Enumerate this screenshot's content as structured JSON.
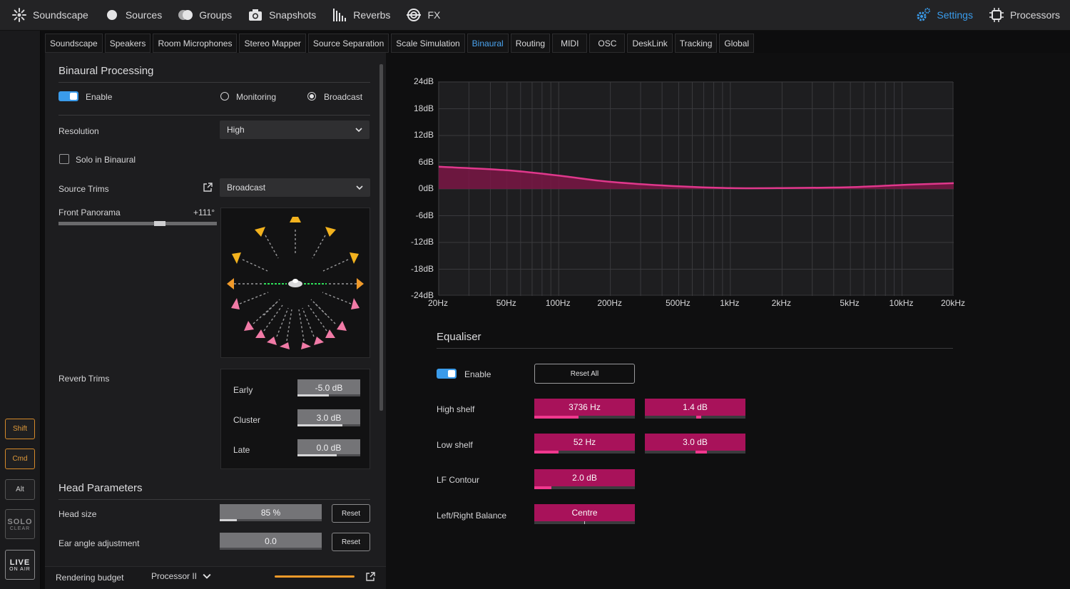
{
  "nav": {
    "items": [
      "Soundscape",
      "Sources",
      "Groups",
      "Snapshots",
      "Reverbs",
      "FX"
    ],
    "right": [
      "Settings",
      "Processors"
    ],
    "active": "Settings"
  },
  "tabs": [
    "Soundscape",
    "Speakers",
    "Room Microphones",
    "Stereo Mapper",
    "Source Separation",
    "Scale Simulation",
    "Binaural",
    "Routing",
    "MIDI",
    "OSC",
    "DeskLink",
    "Tracking",
    "Global"
  ],
  "sidebar": {
    "shift": "Shift",
    "cmd": "Cmd",
    "alt": "Alt",
    "solo": "SOLO",
    "solo_sub": "CLEAR",
    "live": "LIVE",
    "live_sub": "ON AIR"
  },
  "binaural": {
    "title": "Binaural Processing",
    "enable_label": "Enable",
    "monitoring_label": "Monitoring",
    "broadcast_label": "Broadcast",
    "resolution_label": "Resolution",
    "resolution_value": "High",
    "solo_label": "Solo in Binaural",
    "source_trims_label": "Source Trims",
    "source_trims_value": "Broadcast",
    "front_panorama_label": "Front Panorama",
    "front_panorama_value": "+111°",
    "reverb_trims_label": "Reverb Trims",
    "reverb": [
      {
        "label": "Early",
        "value": "-5.0 dB",
        "fill": 0.5
      },
      {
        "label": "Cluster",
        "value": "3.0 dB",
        "fill": 0.72
      },
      {
        "label": "Late",
        "value": "0.0 dB",
        "fill": 0.63
      }
    ]
  },
  "head": {
    "title": "Head Parameters",
    "size_label": "Head size",
    "size_value": "85 %",
    "size_fill": 0.17,
    "ear_label": "Ear angle adjustment",
    "ear_value": "0.0",
    "reset_label": "Reset"
  },
  "footer": {
    "budget_label": "Rendering budget",
    "processor": "Processor II"
  },
  "chart": {
    "y_ticks": [
      "24dB",
      "18dB",
      "12dB",
      "6dB",
      "0dB",
      "-6dB",
      "-12dB",
      "-18dB",
      "-24dB"
    ],
    "x_ticks": [
      "20Hz",
      "50Hz",
      "100Hz",
      "200Hz",
      "500Hz",
      "1kHz",
      "2kHz",
      "5kHz",
      "10kHz",
      "20kHz"
    ]
  },
  "chart_data": {
    "type": "line",
    "x": [
      20,
      50,
      100,
      200,
      500,
      1000,
      2000,
      5000,
      10000,
      20000
    ],
    "series": [
      {
        "values": [
          5.0,
          4.2,
          3.0,
          1.6,
          0.6,
          0.2,
          0.2,
          0.4,
          0.9,
          1.3
        ]
      }
    ],
    "x_scale": "log",
    "xlim": [
      20,
      20000
    ],
    "ylim": [
      -24,
      24
    ],
    "grid": true,
    "color": "#e0388c"
  },
  "equaliser": {
    "title": "Equaliser",
    "enable_label": "Enable",
    "reset_all_label": "Reset All",
    "high_shelf_label": "High shelf",
    "high_shelf_freq": "3736 Hz",
    "high_shelf_freq_fill": 0.44,
    "high_shelf_gain": "1.4 dB",
    "low_shelf_label": "Low shelf",
    "low_shelf_freq": "52 Hz",
    "low_shelf_freq_fill": 0.24,
    "low_shelf_gain": "3.0 dB",
    "lf_contour_label": "LF Contour",
    "lf_contour_value": "2.0 dB",
    "lf_contour_fill": 0.17,
    "balance_label": "Left/Right Balance",
    "balance_value": "Centre"
  }
}
